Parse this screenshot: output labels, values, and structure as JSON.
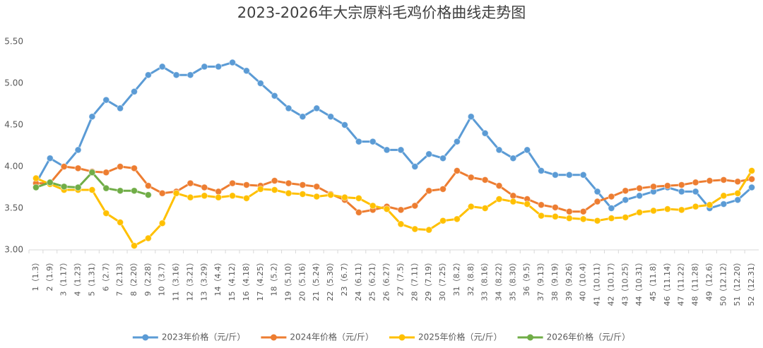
{
  "chart_data": {
    "type": "line",
    "title": "2023-2026年大宗原料毛鸡价格曲线走势图",
    "categories": [
      "1（1.3）",
      "2（1.9）",
      "3（1.17）",
      "4（1.23）",
      "5（1.31）",
      "6（2.7）",
      "7（2.13）",
      "8（2.20）",
      "9（2.28）",
      "10（3.7）",
      "11（3.16）",
      "12（3.21）",
      "13（3.29）",
      "14（4.4）",
      "15（4.12）",
      "16（4.18）",
      "17（4.25）",
      "18（5.2）",
      "19（5.10）",
      "20（5.16）",
      "21（5.24）",
      "22（5.30）",
      "23（6.7）",
      "24（6.11）",
      "25（6.21）",
      "26（6.27）",
      "27（7.5）",
      "28（7.11）",
      "29（7.19）",
      "30（7.25）",
      "31（8.2）",
      "32（8.8）",
      "33（8.16）",
      "34（8.22）",
      "35（8.30）",
      "36（9.5）",
      "37（9.13）",
      "38（9.19）",
      "39（9.26）",
      "40（10.4）",
      "41（10.11）",
      "42（10.17）",
      "43（10.25）",
      "44（10.31）",
      "45（11.8）",
      "46（11.14）",
      "47（11.22）",
      "48（11.28）",
      "49（12.6）",
      "50（12.12）",
      "51（12.20）",
      "52（12.31）"
    ],
    "series": [
      {
        "name": "2023年价格（元/斤）",
        "color": "#5b9bd5",
        "values": [
          3.8,
          4.1,
          4.0,
          4.2,
          4.6,
          4.8,
          4.7,
          4.9,
          5.1,
          5.2,
          5.1,
          5.1,
          5.2,
          5.2,
          5.25,
          5.15,
          5.0,
          4.85,
          4.7,
          4.6,
          4.7,
          4.6,
          4.5,
          4.3,
          4.3,
          4.2,
          4.2,
          4.0,
          4.15,
          4.1,
          4.3,
          4.6,
          4.4,
          4.2,
          4.1,
          4.2,
          3.95,
          3.9,
          3.9,
          3.9,
          3.7,
          3.5,
          3.6,
          3.65,
          3.7,
          3.75,
          3.7,
          3.7,
          3.5,
          3.55,
          3.6,
          3.75
        ]
      },
      {
        "name": "2024年价格（元/斤）",
        "color": "#ed7d31",
        "values": [
          3.8,
          3.8,
          4.0,
          3.98,
          3.94,
          3.93,
          4.0,
          3.98,
          3.77,
          3.68,
          3.7,
          3.8,
          3.75,
          3.7,
          3.8,
          3.78,
          3.77,
          3.83,
          3.8,
          3.78,
          3.76,
          3.67,
          3.6,
          3.45,
          3.48,
          3.52,
          3.48,
          3.53,
          3.71,
          3.73,
          3.95,
          3.87,
          3.84,
          3.77,
          3.65,
          3.61,
          3.54,
          3.51,
          3.46,
          3.46,
          3.58,
          3.64,
          3.71,
          3.74,
          3.76,
          3.77,
          3.78,
          3.81,
          3.83,
          3.84,
          3.82,
          3.85
        ]
      },
      {
        "name": "2025年价格（元/斤）",
        "color": "#ffc000",
        "values": [
          3.86,
          3.79,
          3.72,
          3.72,
          3.72,
          3.44,
          3.33,
          3.05,
          3.14,
          3.32,
          3.68,
          3.63,
          3.65,
          3.63,
          3.65,
          3.62,
          3.73,
          3.72,
          3.68,
          3.67,
          3.64,
          3.66,
          3.63,
          3.62,
          3.53,
          3.49,
          3.31,
          3.25,
          3.24,
          3.35,
          3.37,
          3.52,
          3.5,
          3.61,
          3.58,
          3.55,
          3.41,
          3.4,
          3.38,
          3.37,
          3.35,
          3.38,
          3.39,
          3.45,
          3.47,
          3.49,
          3.48,
          3.52,
          3.54,
          3.65,
          3.68,
          3.95
        ]
      },
      {
        "name": "2026年价格（元/斤）",
        "color": "#70ad47",
        "values": [
          3.75,
          3.81,
          3.76,
          3.75,
          3.93,
          3.74,
          3.71,
          3.71,
          3.66,
          null,
          null,
          null,
          null,
          null,
          null,
          null,
          null,
          null,
          null,
          null,
          null,
          null,
          null,
          null,
          null,
          null,
          null,
          null,
          null,
          null,
          null,
          null,
          null,
          null,
          null,
          null,
          null,
          null,
          null,
          null,
          null,
          null,
          null,
          null,
          null,
          null,
          null,
          null,
          null,
          null,
          null,
          null
        ]
      }
    ],
    "ylim": [
      3.0,
      5.5
    ],
    "yticks": [
      {
        "value": 3.0,
        "label": "3.00"
      },
      {
        "value": 3.5,
        "label": "3.50"
      },
      {
        "value": 4.0,
        "label": "4.00"
      },
      {
        "value": 4.5,
        "label": "4.50"
      },
      {
        "value": 5.0,
        "label": "5.00"
      },
      {
        "value": 5.5,
        "label": "5.50"
      }
    ],
    "grid": false,
    "legend": "bottom"
  }
}
